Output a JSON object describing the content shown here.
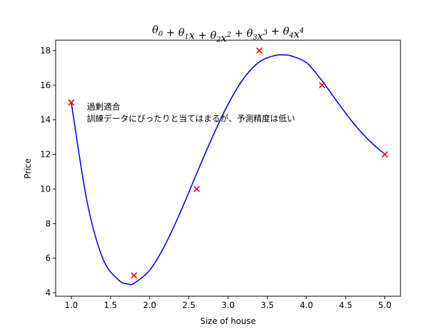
{
  "chart_data": {
    "type": "scatter",
    "xlabel": "Size of house",
    "ylabel": "Price",
    "xlim": [
      0.8,
      5.2
    ],
    "ylim": [
      3.8,
      18.6
    ],
    "x_ticks": [
      1.0,
      1.5,
      2.0,
      2.5,
      3.0,
      3.5,
      4.0,
      4.5,
      5.0
    ],
    "x_tick_labels": [
      "1.0",
      "1.5",
      "2.0",
      "2.5",
      "3.0",
      "3.5",
      "4.0",
      "4.5",
      "5.0"
    ],
    "y_ticks": [
      4,
      6,
      8,
      10,
      12,
      14,
      16,
      18
    ],
    "y_tick_labels": [
      "4",
      "6",
      "8",
      "10",
      "12",
      "14",
      "16",
      "18"
    ],
    "title_parts": [
      {
        "t": "θ",
        "s": "0"
      },
      {
        "op": " + "
      },
      {
        "t": "θ",
        "s": "1"
      },
      {
        "t": "x"
      },
      {
        "op": " + "
      },
      {
        "t": "θ",
        "s": "2"
      },
      {
        "t": "x",
        "p": "2"
      },
      {
        "op": " + "
      },
      {
        "t": "θ",
        "s": "3"
      },
      {
        "t": "x",
        "p": "3"
      },
      {
        "op": " + "
      },
      {
        "t": "θ",
        "s": "4"
      },
      {
        "t": "x",
        "p": "4"
      }
    ],
    "annotation_lines": [
      "過剰適合",
      "訓練データにぴったりと当てはまるが、予測精度は低い"
    ],
    "series": [
      {
        "kind": "scatter",
        "marker": "x",
        "color": "#ff0000",
        "x": [
          1.0,
          1.8,
          2.6,
          3.4,
          4.2,
          5.0
        ],
        "y": [
          15,
          5,
          10,
          18,
          16,
          12
        ]
      },
      {
        "kind": "line",
        "color": "#0000ff",
        "x": [
          1.0,
          1.2,
          1.4,
          1.6,
          1.73,
          1.8,
          2.0,
          2.2,
          2.4,
          2.6,
          2.8,
          3.0,
          3.2,
          3.4,
          3.6,
          3.72,
          3.8,
          4.0,
          4.2,
          4.4,
          4.6,
          4.8,
          5.0
        ],
        "y": [
          15.0,
          9.3,
          6.0,
          4.75,
          4.5,
          4.55,
          5.3,
          6.8,
          8.75,
          10.9,
          13.0,
          14.9,
          16.4,
          17.35,
          17.72,
          17.75,
          17.7,
          17.3,
          16.25,
          15.0,
          13.8,
          12.8,
          12.0
        ]
      }
    ]
  }
}
